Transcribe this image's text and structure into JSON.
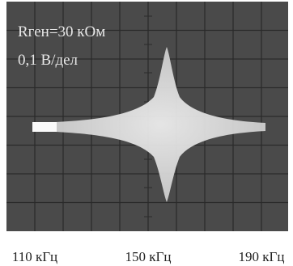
{
  "screen": {
    "labels": [
      "Rген=30 кОм",
      "0,1 В/дел"
    ]
  },
  "axis": {
    "labels": [
      "110 кГц",
      "150 кГц",
      "190 кГц"
    ]
  }
}
